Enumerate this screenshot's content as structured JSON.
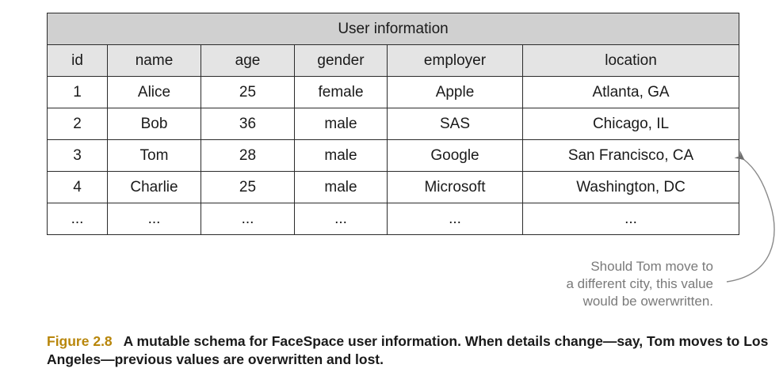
{
  "table": {
    "title": "User information",
    "columns": [
      "id",
      "name",
      "age",
      "gender",
      "employer",
      "location"
    ],
    "rows": [
      [
        "1",
        "Alice",
        "25",
        "female",
        "Apple",
        "Atlanta, GA"
      ],
      [
        "2",
        "Bob",
        "36",
        "male",
        "SAS",
        "Chicago, IL"
      ],
      [
        "3",
        "Tom",
        "28",
        "male",
        "Google",
        "San Francisco, CA"
      ],
      [
        "4",
        "Charlie",
        "25",
        "male",
        "Microsoft",
        "Washington, DC"
      ],
      [
        "...",
        "...",
        "...",
        "...",
        "...",
        "..."
      ]
    ]
  },
  "annotation": {
    "lines": [
      "Should Tom move to",
      "a different city, this value",
      "would be owerwritten."
    ]
  },
  "caption": {
    "figure_label": "Figure 2.8",
    "text": "A mutable schema for FaceSpace user information. When details change—say, Tom moves to Los Angeles—previous values are overwritten and lost."
  },
  "colors": {
    "title_row": "#d0d0d0",
    "header_row": "#e4e4e4",
    "annotation_text": "#7a7a7a",
    "figure_label": "#b8860b"
  }
}
